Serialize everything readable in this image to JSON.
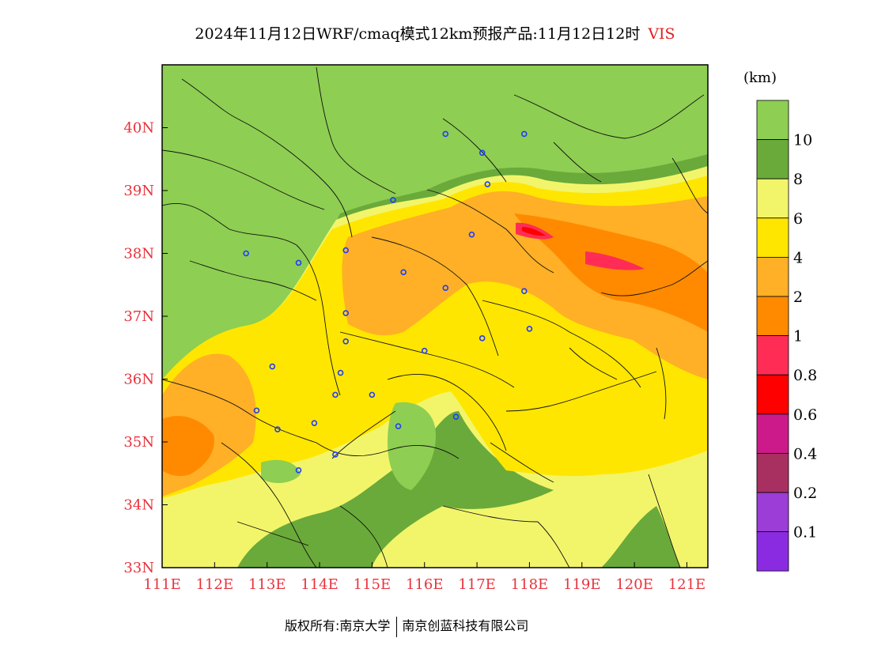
{
  "title": {
    "main": "2024年11月12日WRF/cmaq模式12km预报产品:11月12日12时",
    "variable": "VIS"
  },
  "colorbar": {
    "unit": "(km)",
    "bins": [
      {
        "color": "#8ece52",
        "label": "10"
      },
      {
        "color": "#6aaa3a",
        "label": "8"
      },
      {
        "color": "#f2f56a",
        "label": "6"
      },
      {
        "color": "#ffe600",
        "label": "4"
      },
      {
        "color": "#ffb026",
        "label": "2"
      },
      {
        "color": "#ff8a00",
        "label": "1"
      },
      {
        "color": "#ff2d55",
        "label": "0.8"
      },
      {
        "color": "#ff0000",
        "label": "0.6"
      },
      {
        "color": "#cc1a8a",
        "label": "0.4"
      },
      {
        "color": "#a83060",
        "label": "0.2"
      },
      {
        "color": "#9b3dd6",
        "label": "0.1"
      },
      {
        "color": "#8a2be2",
        "label": ""
      }
    ]
  },
  "map": {
    "lon_range": [
      111,
      121.4
    ],
    "lat_range": [
      33,
      41
    ],
    "lon_ticks": [
      "111E",
      "112E",
      "113E",
      "114E",
      "115E",
      "116E",
      "117E",
      "118E",
      "119E",
      "120E",
      "121E"
    ],
    "lat_ticks": [
      "33N",
      "34N",
      "35N",
      "36N",
      "37N",
      "38N",
      "39N",
      "40N"
    ],
    "cities": [
      [
        117.9,
        39.9
      ],
      [
        117.1,
        39.6
      ],
      [
        116.4,
        39.9
      ],
      [
        117.2,
        39.1
      ],
      [
        115.4,
        38.85
      ],
      [
        116.9,
        38.3
      ],
      [
        114.5,
        38.05
      ],
      [
        112.6,
        38.0
      ],
      [
        113.6,
        37.85
      ],
      [
        115.6,
        37.7
      ],
      [
        116.4,
        37.45
      ],
      [
        117.9,
        37.4
      ],
      [
        114.5,
        37.05
      ],
      [
        118.0,
        36.8
      ],
      [
        114.5,
        36.6
      ],
      [
        117.1,
        36.65
      ],
      [
        116.0,
        36.45
      ],
      [
        113.1,
        36.2
      ],
      [
        114.4,
        36.1
      ],
      [
        114.3,
        35.75
      ],
      [
        115.0,
        35.75
      ],
      [
        112.8,
        35.5
      ],
      [
        116.6,
        35.4
      ],
      [
        113.2,
        35.2
      ],
      [
        113.9,
        35.3
      ],
      [
        115.5,
        35.25
      ],
      [
        114.3,
        34.8
      ],
      [
        113.6,
        34.55
      ]
    ]
  },
  "footer": {
    "copyright": "版权所有:南京大学",
    "company": "南京创蓝科技有限公司"
  }
}
